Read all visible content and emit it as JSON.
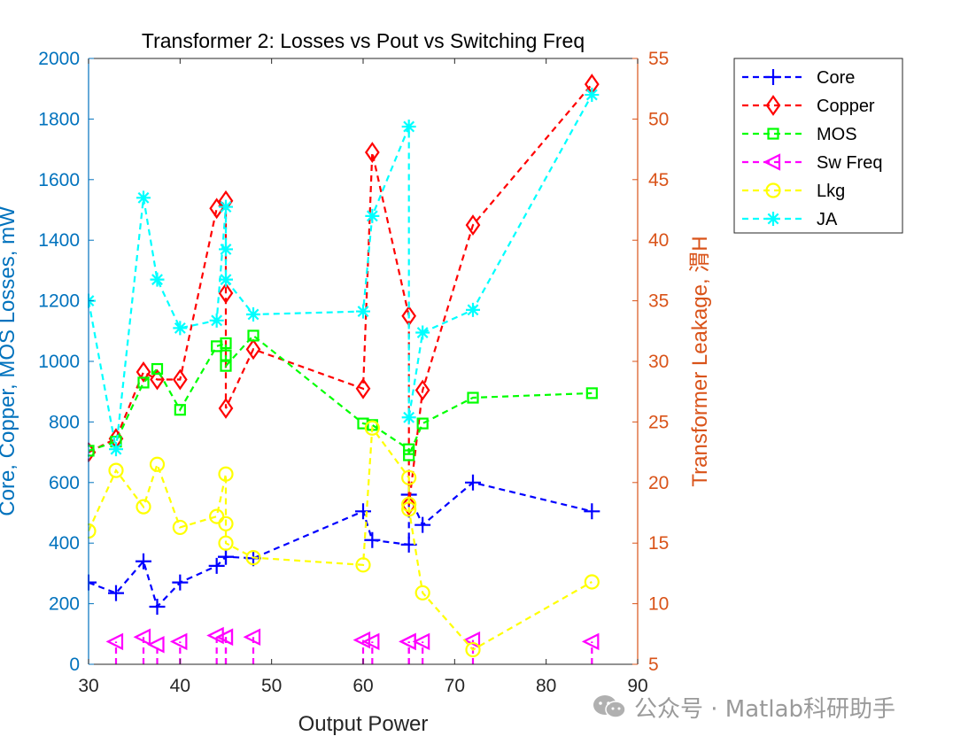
{
  "chart_data": {
    "type": "line",
    "title": "Transformer 2: Losses vs Pout vs Switching Freq",
    "xlabel": "Output Power",
    "ylabel_left": "Core, Copper, MOS Losses, mW",
    "ylabel_right": "Transformer Leakage, 渭H",
    "xlim": [
      30,
      90
    ],
    "ylim_left": [
      0,
      2000
    ],
    "ylim_right": [
      5,
      55
    ],
    "xticks": [
      "30",
      "40",
      "50",
      "60",
      "70",
      "80",
      "90"
    ],
    "yticks_left": [
      "0",
      "200",
      "400",
      "600",
      "800",
      "1000",
      "1200",
      "1400",
      "1600",
      "1800",
      "2000"
    ],
    "yticks_right": [
      "5",
      "10",
      "15",
      "20",
      "25",
      "30",
      "35",
      "40",
      "45",
      "50",
      "55"
    ],
    "legend_position": "outside-top-right",
    "grid": false,
    "series": [
      {
        "name": "Core",
        "axis": "left",
        "color": "#0000FF",
        "marker": "plus",
        "x": [
          30,
          33,
          36,
          37.5,
          40,
          44,
          45,
          45,
          48,
          60,
          61,
          65,
          65,
          66.5,
          72,
          85
        ],
        "y": [
          270,
          235,
          340,
          190,
          270,
          325,
          355,
          355,
          350,
          505,
          410,
          395,
          560,
          460,
          600,
          505
        ]
      },
      {
        "name": "Copper",
        "axis": "left",
        "color": "#FF0000",
        "marker": "diamond",
        "x": [
          30,
          33,
          36,
          37.5,
          40,
          44,
          45,
          45,
          45,
          48,
          60,
          61,
          65,
          65,
          66.5,
          72,
          85
        ],
        "y": [
          700,
          745,
          965,
          940,
          940,
          1505,
          1530,
          1225,
          845,
          1040,
          910,
          1690,
          1150,
          525,
          905,
          1450,
          1915
        ]
      },
      {
        "name": "MOS",
        "axis": "left",
        "color": "#00FF00",
        "marker": "square",
        "x": [
          30,
          33,
          36,
          37.5,
          40,
          44,
          45,
          45,
          45,
          48,
          60,
          61,
          65,
          65,
          66.5,
          72,
          85
        ],
        "y": [
          705,
          735,
          930,
          975,
          840,
          1050,
          1060,
          1020,
          985,
          1085,
          795,
          790,
          710,
          690,
          795,
          880,
          895
        ]
      },
      {
        "name": "Sw Freq",
        "axis": "left",
        "color": "#FF00FF",
        "marker": "triangle-left",
        "stem": true,
        "x": [
          33,
          36,
          37.5,
          40,
          44,
          45,
          45,
          48,
          60,
          61,
          65,
          65,
          66.5,
          72,
          85
        ],
        "y": [
          75,
          90,
          65,
          75,
          95,
          90,
          90,
          90,
          80,
          75,
          75,
          75,
          75,
          80,
          75
        ]
      },
      {
        "name": "Lkg",
        "axis": "right",
        "color": "#FFFF00",
        "marker": "circle",
        "x": [
          30,
          33,
          36,
          37.5,
          40,
          44,
          45,
          45,
          45,
          48,
          60,
          61,
          65,
          65,
          65,
          66.5,
          72,
          85
        ],
        "y": [
          16.0,
          21.0,
          18.0,
          21.5,
          16.3,
          17.2,
          20.7,
          16.6,
          15.0,
          13.8,
          13.2,
          24.5,
          20.4,
          18.2,
          17.8,
          10.9,
          6.2,
          11.8
        ]
      },
      {
        "name": "JA",
        "axis": "left",
        "color": "#00FFFF",
        "marker": "asterisk",
        "x": [
          30,
          33,
          36,
          37.5,
          40,
          44,
          45,
          45,
          45,
          48,
          60,
          61,
          65,
          65,
          66.5,
          72,
          85
        ],
        "y": [
          1200,
          710,
          1540,
          1270,
          1110,
          1135,
          1510,
          1370,
          1270,
          1155,
          1165,
          1480,
          1775,
          815,
          1095,
          1170,
          1880
        ]
      }
    ]
  },
  "watermark": {
    "text": "公众号 · Matlab科研助手",
    "icon": "wechat-icon"
  }
}
